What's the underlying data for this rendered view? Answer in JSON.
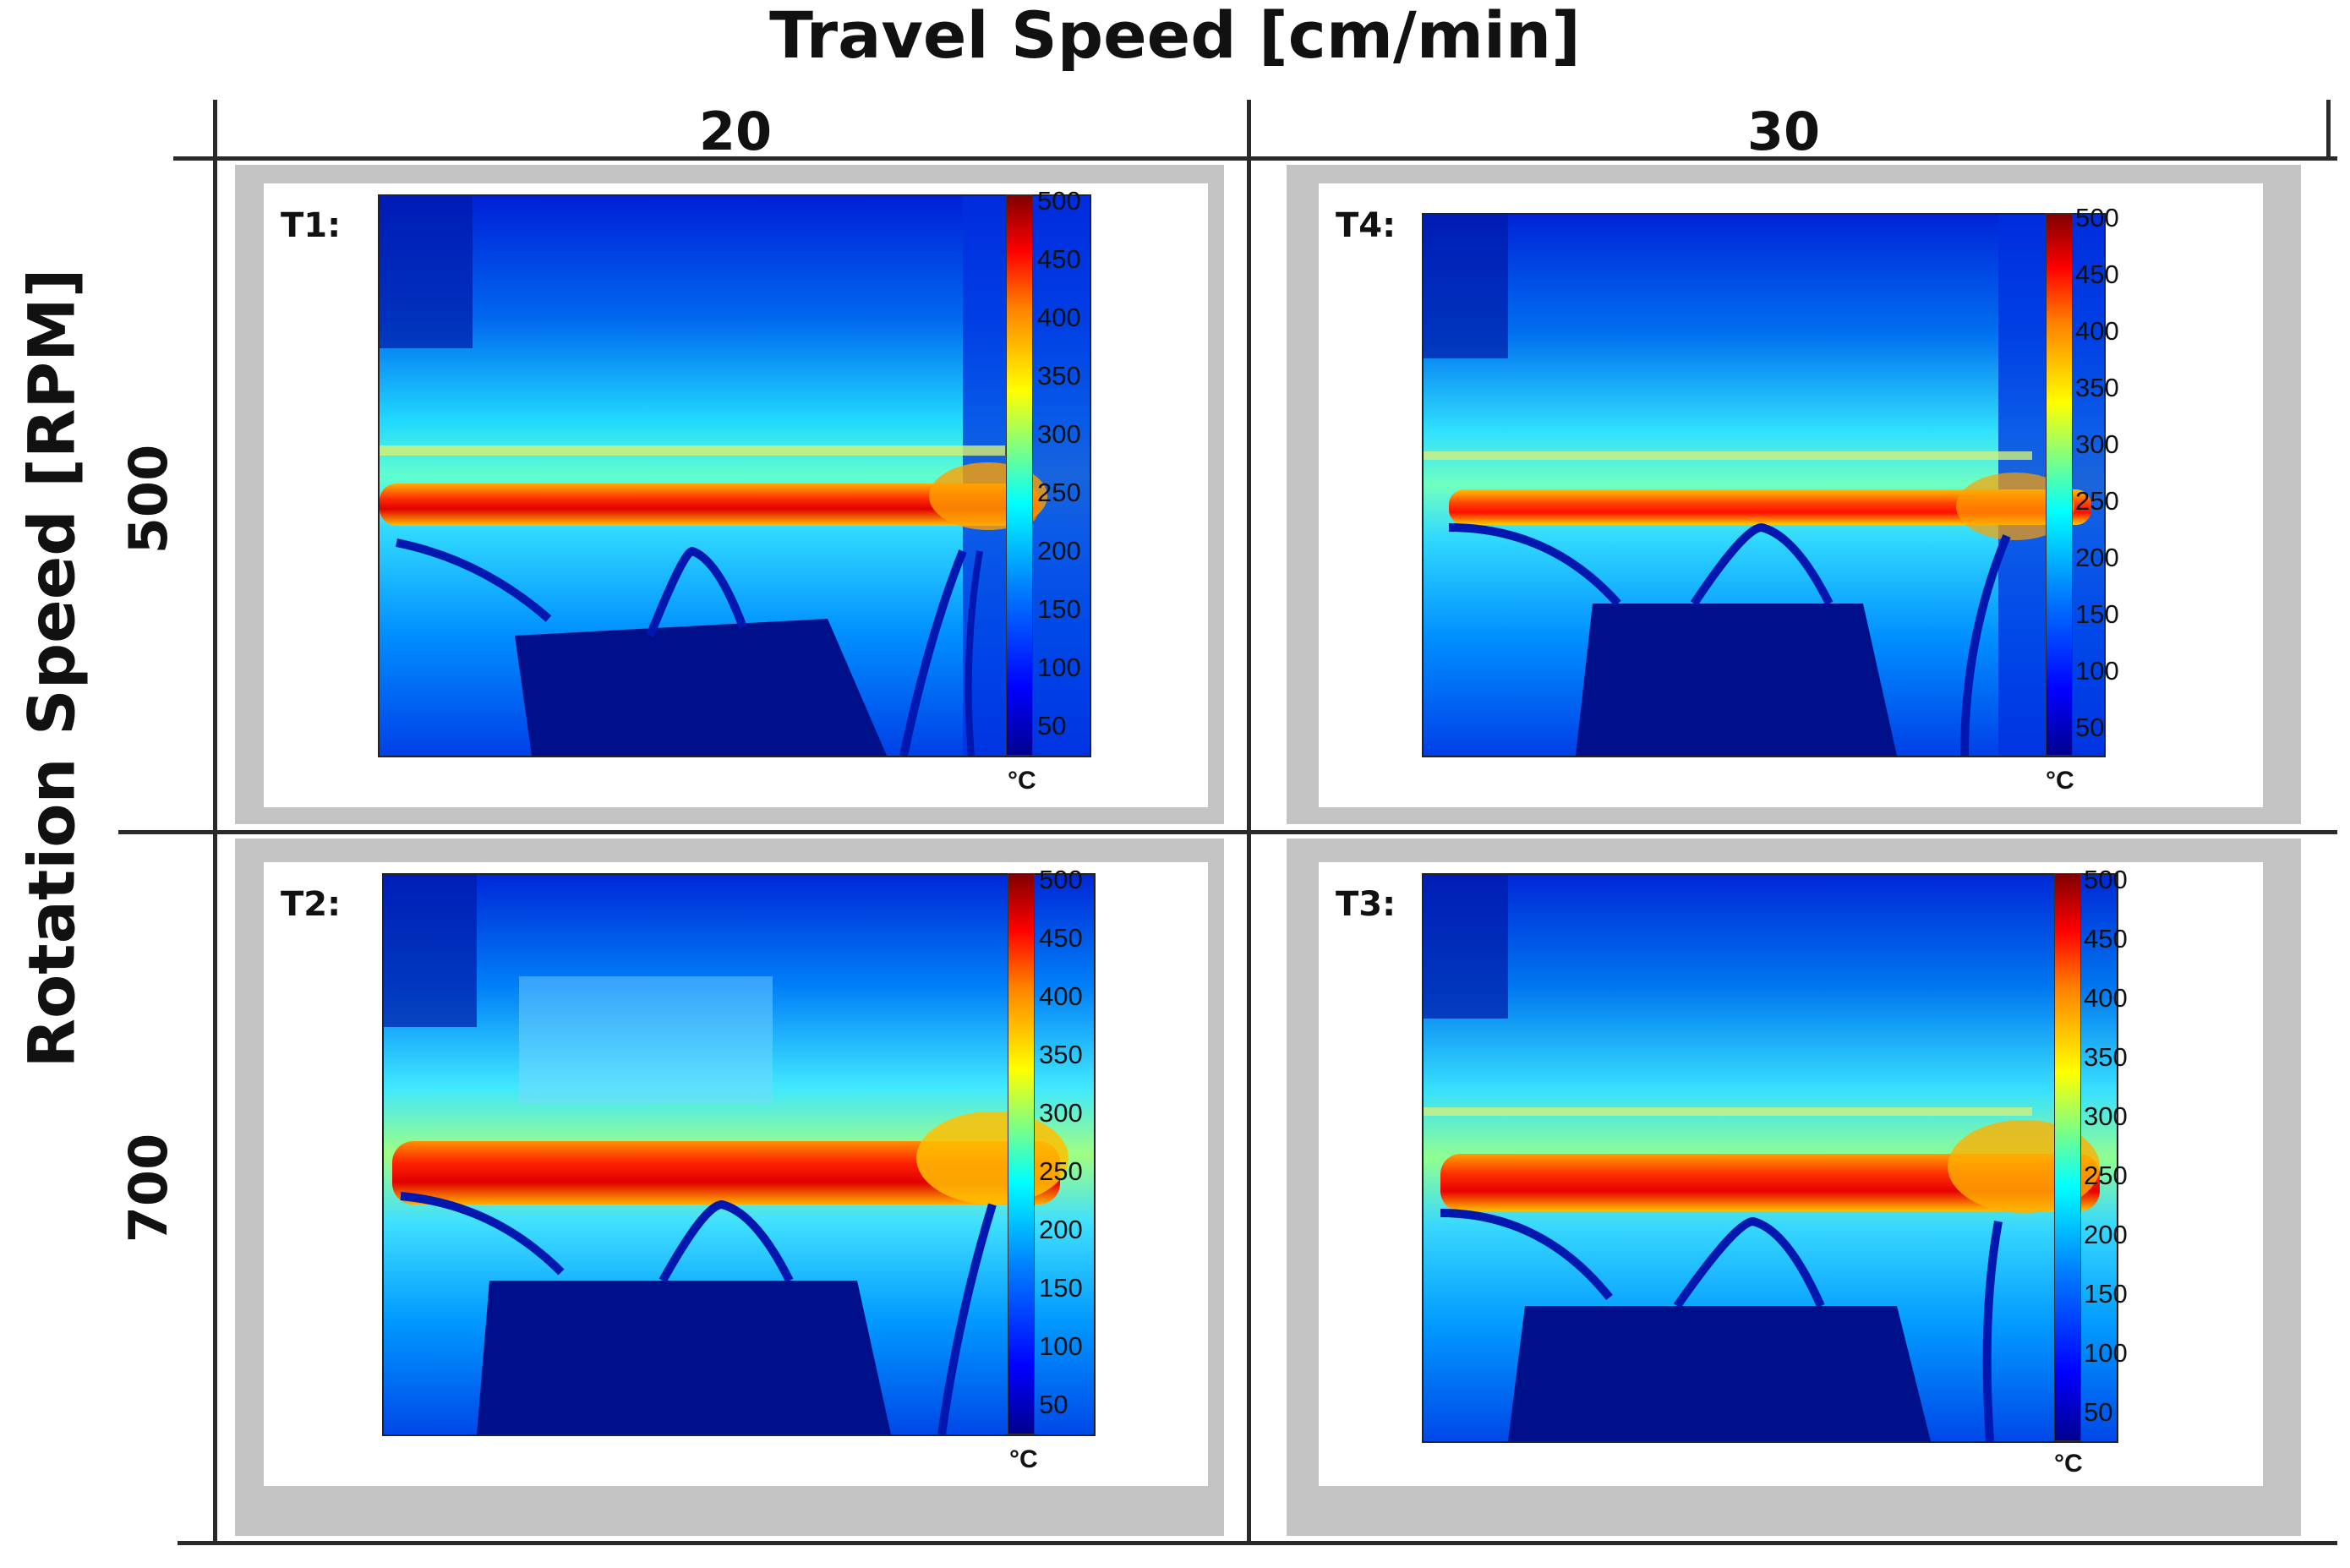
{
  "figure": {
    "column_axis_title": "Travel Speed [cm/min]",
    "row_axis_title": "Rotation Speed [RPM]",
    "columns": [
      "20",
      "30"
    ],
    "rows": [
      "500",
      "700"
    ],
    "panels": [
      {
        "label": "T1:",
        "travel_speed": "20",
        "rotation_speed": "500"
      },
      {
        "label": "T4:",
        "travel_speed": "30",
        "rotation_speed": "500"
      },
      {
        "label": "T2:",
        "travel_speed": "20",
        "rotation_speed": "700"
      },
      {
        "label": "T3:",
        "travel_speed": "30",
        "rotation_speed": "700"
      }
    ],
    "colorbar": {
      "ticks": [
        "500",
        "450",
        "400",
        "350",
        "300",
        "250",
        "200",
        "150",
        "100",
        "50"
      ],
      "unit": "°C",
      "colormap": "jet"
    }
  }
}
